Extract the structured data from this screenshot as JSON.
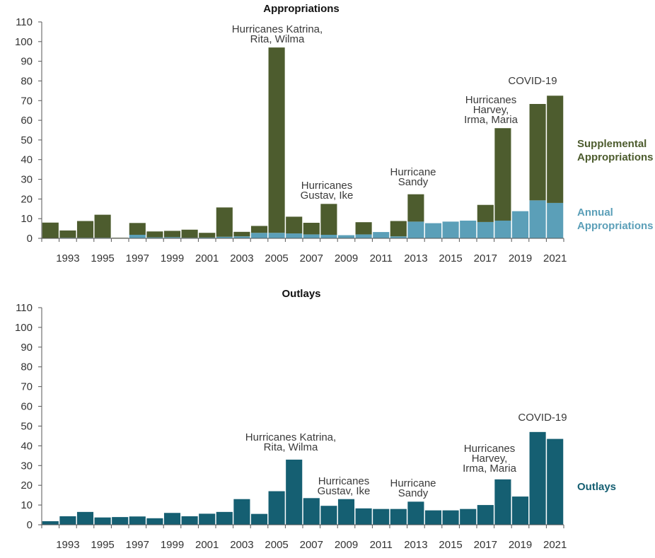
{
  "chart_data": [
    {
      "type": "bar",
      "stacked": true,
      "title": "Appropriations",
      "x": [
        1992,
        1993,
        1994,
        1995,
        1996,
        1997,
        1998,
        1999,
        2000,
        2001,
        2002,
        2003,
        2004,
        2005,
        2006,
        2007,
        2008,
        2009,
        2010,
        2011,
        2012,
        2013,
        2014,
        2015,
        2016,
        2017,
        2018,
        2019,
        2020,
        2021
      ],
      "x_tick_labels": [
        "1993",
        "1995",
        "1997",
        "1999",
        "2001",
        "2003",
        "2005",
        "2007",
        "2009",
        "2011",
        "2013",
        "2015",
        "2017",
        "2019",
        "2021"
      ],
      "ylim": [
        0,
        110
      ],
      "y_ticks": [
        0,
        10,
        20,
        30,
        40,
        50,
        60,
        70,
        80,
        90,
        100,
        110
      ],
      "grid": false,
      "series": [
        {
          "name": "Annual Appropriations",
          "color": "#5b9fb8",
          "values": [
            0,
            0.3,
            0.3,
            0.3,
            0,
            1.8,
            0.5,
            0.6,
            0.3,
            0.4,
            0.8,
            1.0,
            2.8,
            2.8,
            2.5,
            2.0,
            1.8,
            1.6,
            2.0,
            3.2,
            1.0,
            8.5,
            7.7,
            8.5,
            9.0,
            8.3,
            9.0,
            13.8,
            19.3,
            18.0
          ]
        },
        {
          "name": "Supplemental Appropriations",
          "color": "#4d5c2e",
          "values": [
            8.0,
            3.7,
            8.5,
            11.7,
            0.3,
            6.0,
            3.0,
            3.2,
            4.1,
            2.4,
            14.9,
            2.3,
            3.5,
            94.2,
            8.5,
            5.9,
            15.7,
            0,
            6.2,
            0,
            7.8,
            13.9,
            0,
            0,
            0,
            8.7,
            47.0,
            0,
            49.0,
            54.5
          ]
        }
      ],
      "annotations": [
        {
          "lines": [
            "Hurricanes Katrina,",
            "Rita, Wilma"
          ],
          "x": 2005
        },
        {
          "lines": [
            "Hurricanes",
            "Gustav, Ike"
          ],
          "x": 2008
        },
        {
          "lines": [
            "Hurricane",
            "Sandy"
          ],
          "x": 2013
        },
        {
          "lines": [
            "Hurricanes",
            "Harvey,",
            "Irma, Maria"
          ],
          "x": 2018
        },
        {
          "lines": [
            "COVID-19"
          ],
          "x": 2020.5
        }
      ],
      "legend": [
        {
          "lines": [
            "Supplemental",
            "Appropriations"
          ],
          "color": "#4d5c2e"
        },
        {
          "lines": [
            "Annual",
            "Appropriations"
          ],
          "color": "#5b9fb8"
        }
      ],
      "legend_placement": "right"
    },
    {
      "type": "bar",
      "title": "Outlays",
      "x": [
        1992,
        1993,
        1994,
        1995,
        1996,
        1997,
        1998,
        1999,
        2000,
        2001,
        2002,
        2003,
        2004,
        2005,
        2006,
        2007,
        2008,
        2009,
        2010,
        2011,
        2012,
        2013,
        2014,
        2015,
        2016,
        2017,
        2018,
        2019,
        2020,
        2021
      ],
      "x_tick_labels": [
        "1993",
        "1995",
        "1997",
        "1999",
        "2001",
        "2003",
        "2005",
        "2007",
        "2009",
        "2011",
        "2013",
        "2015",
        "2017",
        "2019",
        "2021"
      ],
      "ylim": [
        0,
        110
      ],
      "y_ticks": [
        0,
        10,
        20,
        30,
        40,
        50,
        60,
        70,
        80,
        90,
        100,
        110
      ],
      "grid": false,
      "series": [
        {
          "name": "Outlays",
          "color": "#155f72",
          "values": [
            1.8,
            4.3,
            6.5,
            3.7,
            3.9,
            4.2,
            3.3,
            6.0,
            4.3,
            5.6,
            6.5,
            13.0,
            5.5,
            17.0,
            33.0,
            13.5,
            9.6,
            13.0,
            8.3,
            8.0,
            8.0,
            11.7,
            7.3,
            7.3,
            8.0,
            10.0,
            23.0,
            14.3,
            47.0,
            43.5
          ]
        }
      ],
      "annotations": [
        {
          "lines": [
            "Hurricanes Katrina,",
            "Rita, Wilma"
          ],
          "x": 2005
        },
        {
          "lines": [
            "Hurricanes",
            "Gustav, Ike"
          ],
          "x": 2008
        },
        {
          "lines": [
            "Hurricane",
            "Sandy"
          ],
          "x": 2013
        },
        {
          "lines": [
            "Hurricanes",
            "Harvey,",
            "Irma, Maria"
          ],
          "x": 2018
        },
        {
          "lines": [
            "COVID-19"
          ],
          "x": 2020.5
        }
      ],
      "legend": [
        {
          "lines": [
            "Outlays"
          ],
          "color": "#155f72"
        }
      ],
      "legend_placement": "right"
    }
  ]
}
